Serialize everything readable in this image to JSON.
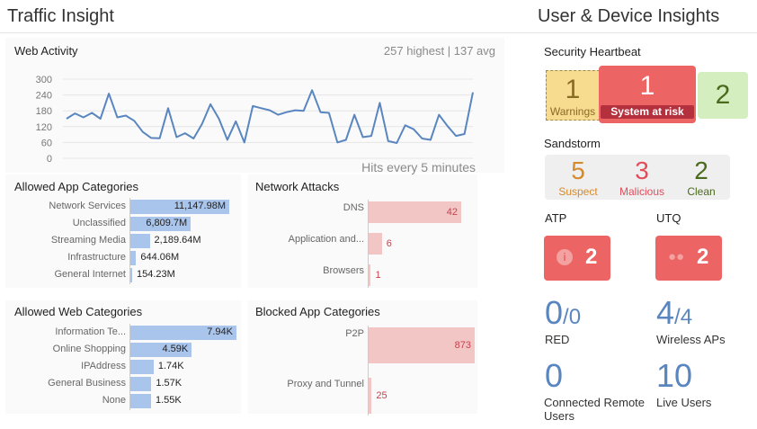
{
  "left_title": "Traffic Insight",
  "right_title": "User & Device Insights",
  "web_activity": {
    "title": "Web Activity",
    "stats": "257 highest | 137 avg",
    "footer": "Hits every 5 minutes",
    "chart_data": {
      "type": "line",
      "y_ticks": [
        "300",
        "240",
        "180",
        "120",
        "60",
        "0"
      ],
      "ylim": [
        0,
        300
      ],
      "values": [
        150,
        170,
        155,
        172,
        150,
        245,
        155,
        162,
        142,
        100,
        77,
        76,
        190,
        80,
        95,
        75,
        130,
        205,
        150,
        70,
        140,
        60,
        198,
        190,
        182,
        165,
        175,
        182,
        180,
        258,
        175,
        172,
        60,
        70,
        165,
        80,
        85,
        210,
        65,
        58,
        125,
        110,
        75,
        70,
        165,
        122,
        85,
        92,
        250
      ],
      "color": "#5a86c0"
    }
  },
  "allowed_app": {
    "title": "Allowed App Categories",
    "items": [
      {
        "label": "Network Services",
        "value": "11,147.98M",
        "frac": 1.0
      },
      {
        "label": "Unclassified",
        "value": "6,809.7M",
        "frac": 0.611
      },
      {
        "label": "Streaming Media",
        "value": "2,189.64M",
        "frac": 0.196
      },
      {
        "label": "Infrastructure",
        "value": "644.06M",
        "frac": 0.058
      },
      {
        "label": "General Internet",
        "value": "154.23M",
        "frac": 0.014
      }
    ],
    "color": "#a9c5ec"
  },
  "network_attacks": {
    "title": "Network Attacks",
    "items": [
      {
        "label": "DNS",
        "value": "42",
        "frac": 1.0
      },
      {
        "label": "Application and...",
        "value": "6",
        "frac": 0.143
      },
      {
        "label": "Browsers",
        "value": "1",
        "frac": 0.024
      }
    ],
    "color": "#f3c6c6",
    "value_color": "#c2434f"
  },
  "allowed_web": {
    "title": "Allowed Web Categories",
    "items": [
      {
        "label": "Information Te...",
        "value": "7.94K",
        "frac": 1.0
      },
      {
        "label": "Online Shopping",
        "value": "4.59K",
        "frac": 0.578
      },
      {
        "label": "IPAddress",
        "value": "1.74K",
        "frac": 0.219
      },
      {
        "label": "General Business",
        "value": "1.57K",
        "frac": 0.198
      },
      {
        "label": "None",
        "value": "1.55K",
        "frac": 0.195
      }
    ],
    "color": "#a9c5ec"
  },
  "blocked_app": {
    "title": "Blocked App Categories",
    "items": [
      {
        "label": "P2P",
        "value": "873",
        "frac": 1.0
      },
      {
        "label": "Proxy and Tunnel",
        "value": "25",
        "frac": 0.029
      }
    ],
    "color": "#f3c6c6",
    "value_color": "#c2434f"
  },
  "heartbeat": {
    "title": "Security Heartbeat",
    "warnings": {
      "count": "1",
      "label": "Warnings"
    },
    "risk": {
      "count": "1",
      "label": "System at risk"
    },
    "ok": {
      "count": "2"
    }
  },
  "sandstorm": {
    "title": "Sandstorm",
    "suspect": {
      "count": "5",
      "label": "Suspect"
    },
    "malicious": {
      "count": "3",
      "label": "Malicious"
    },
    "clean": {
      "count": "2",
      "label": "Clean"
    }
  },
  "atp": {
    "title": "ATP",
    "count": "2",
    "icon": "info-icon"
  },
  "utq": {
    "title": "UTQ",
    "count": "2",
    "icon": "users-icon"
  },
  "red": {
    "value": "0",
    "total": "/0",
    "label": "RED"
  },
  "wireless": {
    "value": "4",
    "total": "/4",
    "label": "Wireless APs"
  },
  "remote_users": {
    "value": "0",
    "label1": "Connected Remote",
    "label2": "Users"
  },
  "live_users": {
    "value": "10",
    "label": "Live Users"
  }
}
